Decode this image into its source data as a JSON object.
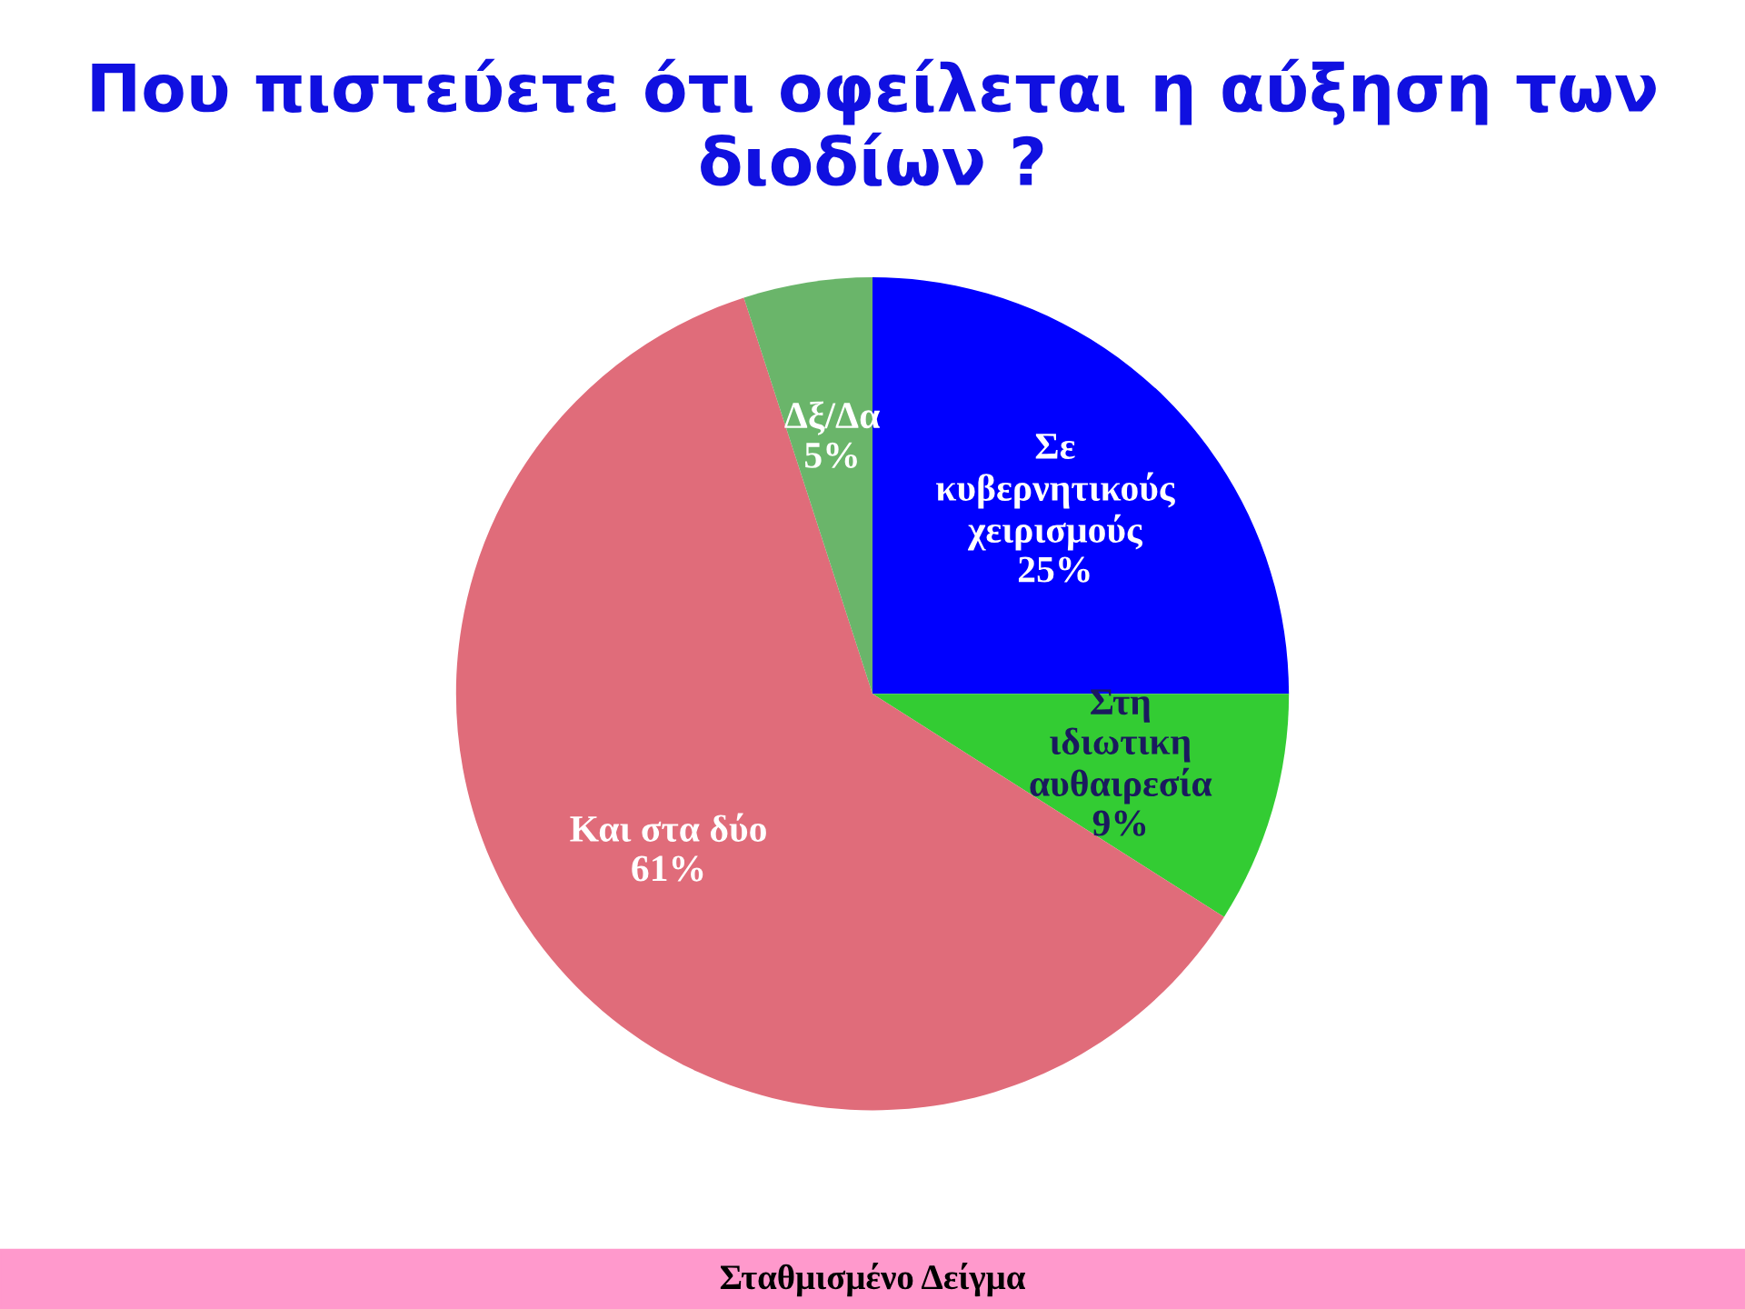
{
  "chart_data": {
    "type": "pie",
    "title": "Που πιστεύετε ότι οφείλεται η αύξηση των διοδίων ?",
    "categories": [
      "Σε\nκυβερνητικούς\nχειρισμούς",
      "Στη\nιδιωτικη\nαυθαιρεσία",
      "Και στα δύο",
      "Δξ/Δα"
    ],
    "values": [
      25,
      9,
      61,
      5
    ],
    "value_labels": [
      "25%",
      "9%",
      "61%",
      "5%"
    ],
    "colors": [
      "#0000ff",
      "#33cc33",
      "#e06c7a",
      "#6ab56a"
    ],
    "annotations": [
      "Σταθμισμένο Δείγμα"
    ]
  }
}
